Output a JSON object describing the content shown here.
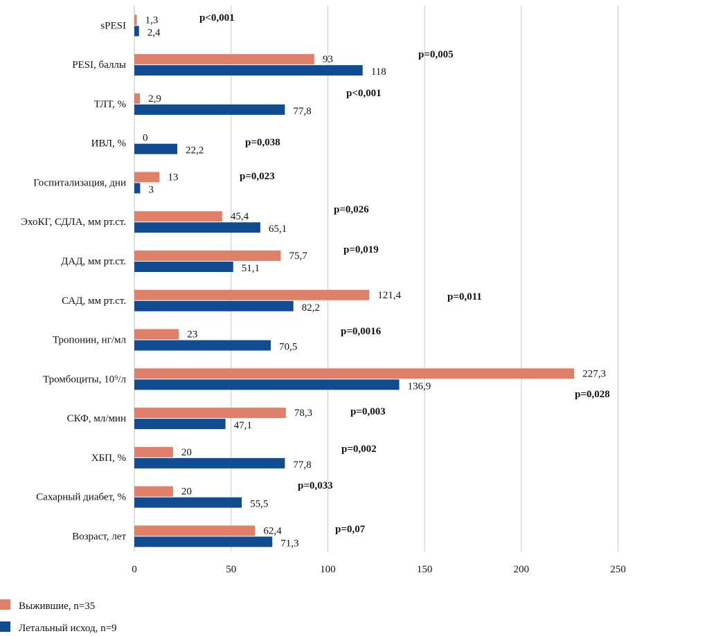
{
  "chart_data": {
    "type": "bar",
    "orientation": "horizontal",
    "categories": [
      "sPESI",
      "PESI, баллы",
      "ТЛТ, %",
      "ИВЛ, %",
      "Госпитализация, дни",
      "ЭхоКГ, СДЛА, мм рт.ст.",
      "ДАД, мм рт.ст.",
      "САД, мм рт.ст.",
      "Тропонин, нг/мл",
      "Тромбоциты, 10⁹/л",
      "СКФ, мл/мин",
      "ХБП, %",
      "Сахарный диабет, %",
      "Возраст, лет"
    ],
    "series": [
      {
        "name": "Выжившие, n=35",
        "color": "#E08069",
        "values": [
          1.3,
          93,
          2.9,
          0,
          13,
          45.4,
          75.7,
          121.4,
          23,
          227.3,
          78.3,
          20,
          20,
          62.4
        ],
        "labels": [
          "1,3",
          "93",
          "2,9",
          "0",
          "13",
          "45,4",
          "75,7",
          "121,4",
          "23",
          "227,3",
          "78,3",
          "20",
          "20",
          "62,4"
        ]
      },
      {
        "name": "Летальный исход, n=9",
        "color": "#0F4C91",
        "values": [
          2.4,
          118,
          77.8,
          22.2,
          3,
          65.1,
          51.1,
          82.2,
          70.5,
          136.9,
          47.1,
          77.8,
          55.5,
          71.3
        ],
        "labels": [
          "2,4",
          "118",
          "77,8",
          "22,2",
          "3",
          "65,1",
          "51,1",
          "82,2",
          "70,5",
          "136,9",
          "47,1",
          "77,8",
          "55,5",
          "71,3"
        ]
      }
    ],
    "p_values": [
      "p<0,001",
      "p=0,005",
      "p<0,001",
      "p=0,038",
      "p=0,023",
      "p=0,026",
      "p=0,019",
      "p=0,011",
      "p=0,0016",
      "p=0,028",
      "p=0,003",
      "p=0,002",
      "p=0,033",
      "p=0,07"
    ],
    "x_ticks": [
      0,
      50,
      100,
      150,
      200,
      250
    ],
    "tick_labels": [
      "0",
      "50",
      "100",
      "150",
      "200",
      "250"
    ],
    "xlim": [
      0,
      250
    ],
    "grid": "vertical",
    "legend": "bottom-left"
  }
}
